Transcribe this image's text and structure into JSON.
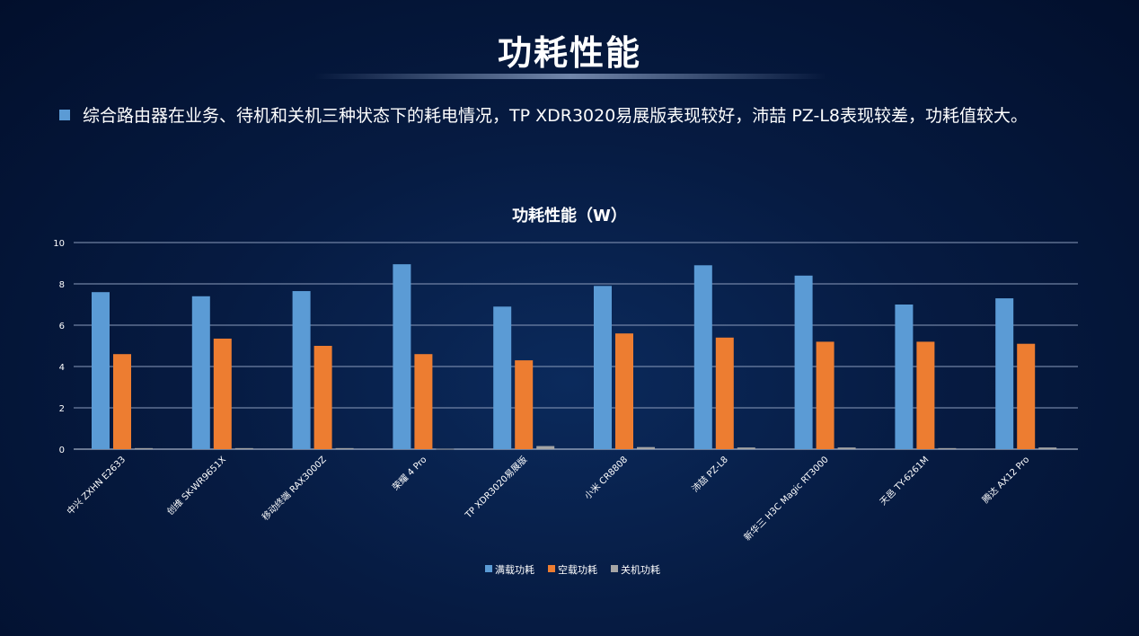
{
  "header": {
    "title": "功耗性能",
    "description": "综合路由器在业务、待机和关机三种状态下的耗电情况，TP XDR3020易展版表现较好，沛喆 PZ-L8表现较差，功耗值较大。"
  },
  "chart_data": {
    "type": "bar",
    "title": "功耗性能（W）",
    "categories": [
      "中兴 ZXHN E2633",
      "创维 SK-WR9651X",
      "移动终端 RAX3000Z",
      "荣耀 4 Pro",
      "TP XDR3020易展版",
      "小米 CR8808",
      "沛喆 PZ-L8",
      "新华三 H3C Magic RT3000",
      "天邑 TY-6261M",
      "腾达 AX12 Pro"
    ],
    "series": [
      {
        "name": "满载功耗",
        "color": "#5b9bd5",
        "values": [
          7.6,
          7.4,
          7.65,
          8.95,
          6.9,
          7.9,
          8.9,
          8.4,
          7.0,
          7.3
        ]
      },
      {
        "name": "空载功耗",
        "color": "#ed7d31",
        "values": [
          4.6,
          5.35,
          5.0,
          4.6,
          4.3,
          5.6,
          5.4,
          5.2,
          5.2,
          5.1
        ]
      },
      {
        "name": "关机功耗",
        "color": "#a5a5a5",
        "values": [
          0.05,
          0.05,
          0.05,
          0.02,
          0.15,
          0.1,
          0.08,
          0.08,
          0.05,
          0.08
        ]
      }
    ],
    "ylim": [
      0,
      10
    ],
    "yticks": [
      0,
      2,
      4,
      6,
      8,
      10
    ],
    "grid": true,
    "legend": "bottom"
  }
}
